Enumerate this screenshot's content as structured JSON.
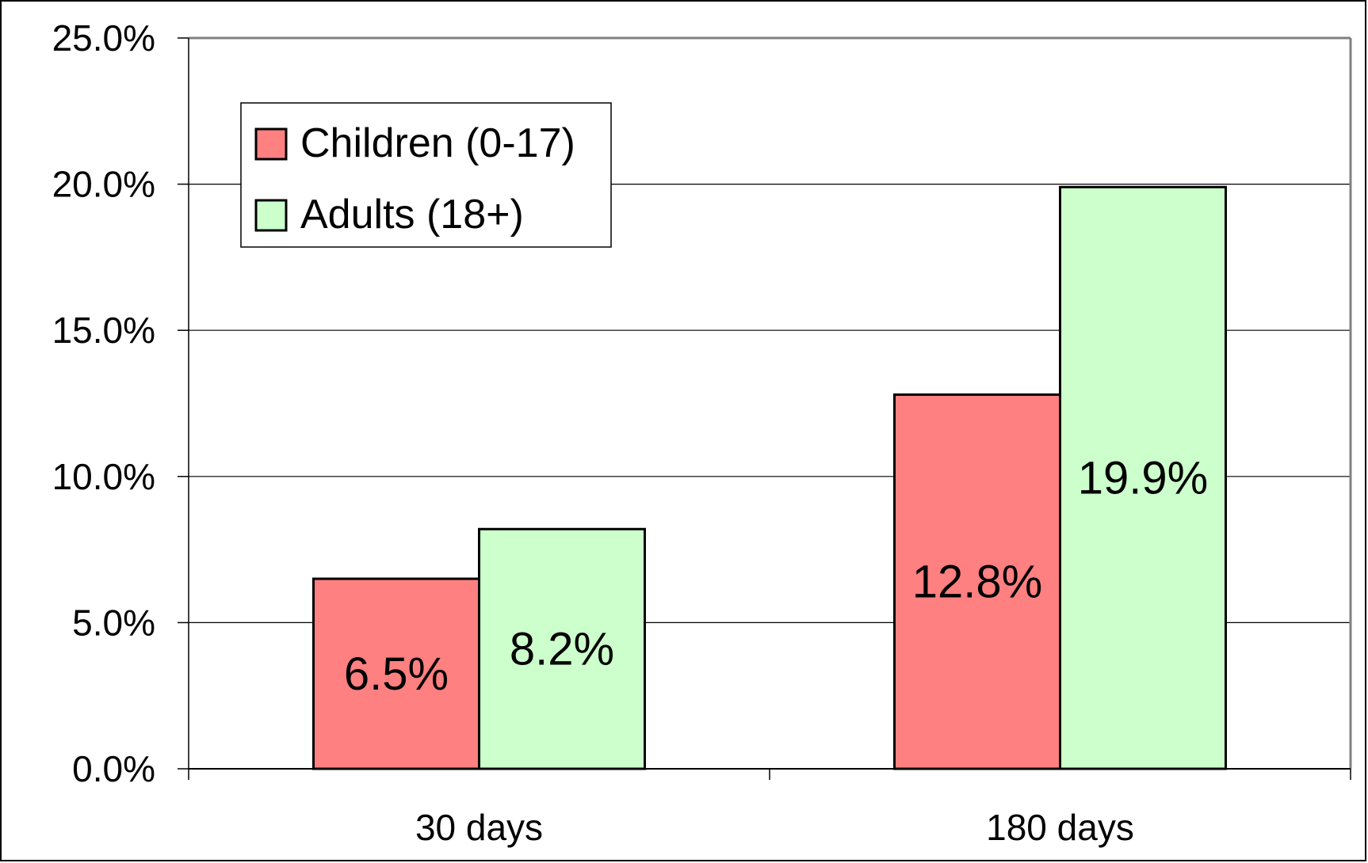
{
  "chart_data": {
    "type": "bar",
    "categories": [
      "30 days",
      "180 days"
    ],
    "series": [
      {
        "name": "Children (0-17)",
        "values": [
          6.5,
          12.8
        ],
        "labels": [
          "6.5%",
          "12.8%"
        ],
        "color": "#ff8080"
      },
      {
        "name": "Adults (18+)",
        "values": [
          8.2,
          19.9
        ],
        "labels": [
          "8.2%",
          "19.9%"
        ],
        "color": "#ccffcc"
      }
    ],
    "ylim": [
      0,
      25
    ],
    "yticks": [
      "0.0%",
      "5.0%",
      "10.0%",
      "15.0%",
      "20.0%",
      "25.0%"
    ],
    "ytick_values": [
      0,
      5,
      10,
      15,
      20,
      25
    ],
    "grid": true,
    "legend_position": "top-left",
    "xlabel": "",
    "ylabel": "",
    "title": ""
  }
}
